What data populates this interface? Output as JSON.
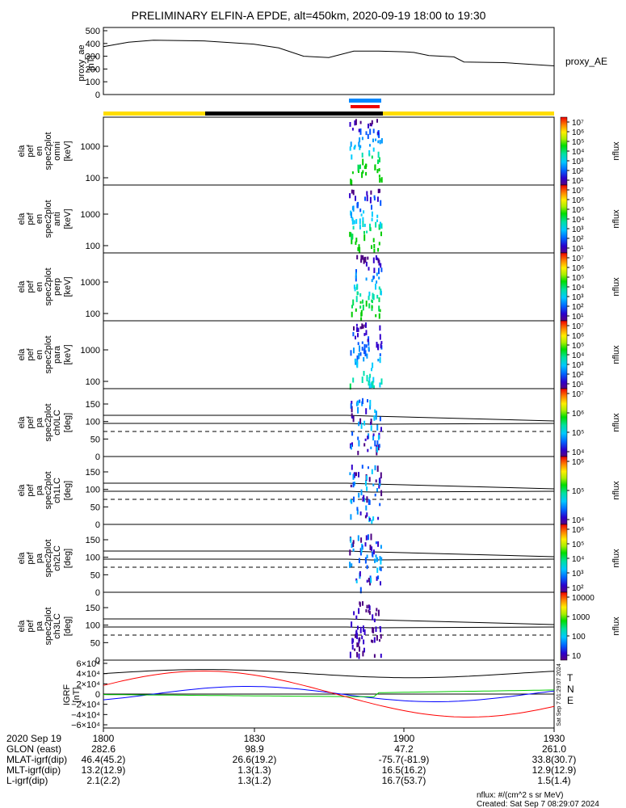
{
  "title": "PRELIMINARY ELFIN-A EPDE, alt=450km, 2020-09-19 18:00 to 19:30",
  "chart_data": [
    {
      "type": "line",
      "id": "proxy_ae",
      "ylabel": [
        "proxy_ae",
        "[nT]"
      ],
      "series_label": "proxy_AE",
      "yticks": [
        "500",
        "400",
        "300",
        "200",
        "100",
        "0"
      ],
      "ylim": [
        0,
        500
      ],
      "x_minutes": [
        0,
        5,
        10,
        20,
        30,
        35,
        40,
        45,
        50,
        55,
        60,
        62,
        65,
        70,
        72,
        80,
        90
      ],
      "values": [
        375,
        410,
        425,
        420,
        395,
        365,
        300,
        290,
        340,
        340,
        335,
        330,
        305,
        295,
        255,
        250,
        225
      ]
    },
    {
      "type": "heatmap",
      "id": "en_omni",
      "ylabel": [
        "ela",
        "pef",
        "en",
        "spec2plot",
        "omni",
        "[keV]"
      ],
      "yticks": [
        "1000",
        "100"
      ],
      "colorbar": {
        "label": "nflux",
        "ticks": [
          "10⁷",
          "10⁶",
          "10⁵",
          "10⁴",
          "10³",
          "10²",
          "10¹"
        ]
      }
    },
    {
      "type": "heatmap",
      "id": "en_anti",
      "ylabel": [
        "ela",
        "pef",
        "en",
        "spec2plot",
        "anti",
        "[keV]"
      ],
      "yticks": [
        "1000",
        "100"
      ],
      "colorbar": {
        "label": "nflux",
        "ticks": [
          "10⁷",
          "10⁶",
          "10⁵",
          "10⁴",
          "10³",
          "10²",
          "10¹"
        ]
      }
    },
    {
      "type": "heatmap",
      "id": "en_perp",
      "ylabel": [
        "ela",
        "pef",
        "en",
        "spec2plot",
        "perp",
        "[keV]"
      ],
      "yticks": [
        "1000",
        "100"
      ],
      "colorbar": {
        "label": "nflux",
        "ticks": [
          "10⁷",
          "10⁶",
          "10⁵",
          "10⁴",
          "10³",
          "10²",
          "10¹"
        ]
      }
    },
    {
      "type": "heatmap",
      "id": "en_para",
      "ylabel": [
        "ela",
        "pef",
        "en",
        "spec2plot",
        "para",
        "[keV]"
      ],
      "yticks": [
        "1000",
        "100"
      ],
      "colorbar": {
        "label": "nflux",
        "ticks": [
          "10⁷",
          "10⁶",
          "10⁵",
          "10⁴",
          "10³",
          "10²",
          "10¹"
        ]
      }
    },
    {
      "type": "heatmap",
      "id": "pa_ch0",
      "ylabel": [
        "ela",
        "pef",
        "pa",
        "spec2plot",
        "ch0LC",
        "[deg]"
      ],
      "yticks": [
        "150",
        "100",
        "50",
        "0"
      ],
      "colorbar": {
        "label": "nflux",
        "ticks": [
          "10⁷",
          "10⁶",
          "10⁵",
          "10⁴"
        ]
      }
    },
    {
      "type": "heatmap",
      "id": "pa_ch1",
      "ylabel": [
        "ela",
        "pef",
        "pa",
        "spec2plot",
        "ch1LC",
        "[deg]"
      ],
      "yticks": [
        "150",
        "100",
        "50",
        "0"
      ],
      "colorbar": {
        "label": "nflux",
        "ticks": [
          "10⁶",
          "10⁵",
          "10⁴"
        ]
      }
    },
    {
      "type": "heatmap",
      "id": "pa_ch2",
      "ylabel": [
        "ela",
        "pef",
        "pa",
        "spec2plot",
        "ch2LC",
        "[deg]"
      ],
      "yticks": [
        "150",
        "100",
        "50",
        "0"
      ],
      "colorbar": {
        "label": "nflux",
        "ticks": [
          "10⁶",
          "10⁵",
          "10⁴",
          "10³",
          "10²"
        ]
      }
    },
    {
      "type": "heatmap",
      "id": "pa_ch3",
      "ylabel": [
        "ela",
        "pef",
        "pa",
        "spec2plot",
        "ch3LC",
        "[deg]"
      ],
      "yticks": [
        "150",
        "100",
        "50",
        "0"
      ],
      "colorbar": {
        "label": "nflux",
        "ticks": [
          "10000",
          "1000",
          "100",
          "10"
        ]
      }
    },
    {
      "type": "line",
      "id": "igrf",
      "ylabel": [
        "IGRF",
        "[nT]"
      ],
      "yticks": [
        "6×10⁴",
        "4×10⁴",
        "2×10⁴",
        "0",
        "−2×10⁴",
        "−4×10⁴",
        "−6×10⁴"
      ],
      "ylim": [
        -60000,
        60000
      ],
      "legend": [
        "T",
        "N",
        "E"
      ],
      "colors": {
        "T": "#000000",
        "N": "#0000ff",
        "E": "#00cc00",
        "red": "#ff0000"
      }
    }
  ],
  "axis": {
    "row_labels": [
      "2020 Sep 19",
      "GLON (east)",
      "MLAT-igrf(dip)",
      "MLT-igrf(dip)",
      "L-igrf(dip)"
    ],
    "columns": [
      {
        "time": "1800",
        "glon": "282.6",
        "mlat": "46.4(45.2)",
        "mlt": "13.2(12.9)",
        "l": "2.1(2.2)"
      },
      {
        "time": "1830",
        "glon": "98.9",
        "mlat": "26.6(19.2)",
        "mlt": "1.3(1.3)",
        "l": "1.3(1.2)"
      },
      {
        "time": "1900",
        "glon": "47.2",
        "mlat": "-75.7(-81.9)",
        "mlt": "16.5(16.2)",
        "l": "16.7(53.7)"
      },
      {
        "time": "1930",
        "glon": "261.0",
        "mlat": "33.8(30.7)",
        "mlt": "12.9(12.9)",
        "l": "1.5(1.4)"
      }
    ]
  },
  "footer": {
    "units": "nflux: #/(cm^2 s sr MeV)",
    "created": "Created: Sat Sep  7 08:29:07 2024",
    "side_stamp": "Sat Sep  7 01:29:07 2024"
  }
}
